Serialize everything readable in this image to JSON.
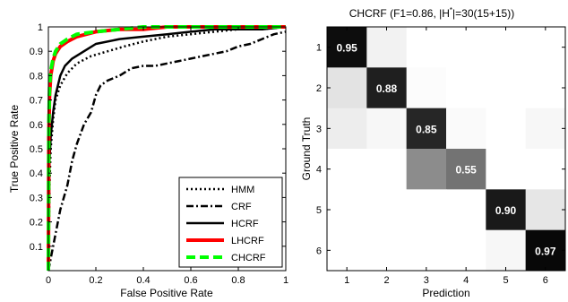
{
  "chart_data": [
    {
      "type": "line",
      "xlabel": "False Positive Rate",
      "ylabel": "True Positive Rate",
      "xlim": [
        0,
        1
      ],
      "ylim": [
        0,
        1
      ],
      "xticks": [
        "0",
        "0.2",
        "0.4",
        "0.6",
        "0.8",
        "1"
      ],
      "yticks": [
        "0.1",
        "0.2",
        "0.3",
        "0.4",
        "0.5",
        "0.6",
        "0.7",
        "0.8",
        "0.9",
        "1"
      ],
      "grid": false,
      "legend_position": "bottom-right",
      "series": [
        {
          "name": "HMM",
          "color": "#000000",
          "style": "dotted",
          "x": [
            0,
            0.005,
            0.01,
            0.02,
            0.03,
            0.05,
            0.08,
            0.12,
            0.18,
            0.25,
            0.32,
            0.4,
            0.5,
            0.6,
            0.7,
            0.8,
            0.9,
            1.0
          ],
          "y": [
            0,
            0.35,
            0.5,
            0.62,
            0.7,
            0.76,
            0.81,
            0.85,
            0.88,
            0.9,
            0.92,
            0.94,
            0.96,
            0.97,
            0.98,
            0.99,
            0.99,
            1.0
          ]
        },
        {
          "name": "CRF",
          "color": "#000000",
          "style": "dashdot",
          "x": [
            0,
            0.02,
            0.05,
            0.08,
            0.1,
            0.12,
            0.15,
            0.18,
            0.2,
            0.22,
            0.25,
            0.3,
            0.35,
            0.4,
            0.45,
            0.5,
            0.55,
            0.6,
            0.65,
            0.7,
            0.75,
            0.8,
            0.85,
            0.9,
            0.95,
            1.0
          ],
          "y": [
            0,
            0.1,
            0.25,
            0.35,
            0.45,
            0.52,
            0.6,
            0.65,
            0.72,
            0.76,
            0.78,
            0.8,
            0.83,
            0.84,
            0.84,
            0.85,
            0.86,
            0.87,
            0.88,
            0.89,
            0.9,
            0.92,
            0.93,
            0.95,
            0.97,
            0.98
          ]
        },
        {
          "name": "HCRF",
          "color": "#000000",
          "style": "solid",
          "x": [
            0,
            0.005,
            0.01,
            0.02,
            0.03,
            0.05,
            0.07,
            0.1,
            0.15,
            0.2,
            0.3,
            0.4,
            0.5,
            0.6,
            0.7,
            0.8,
            0.9,
            1.0
          ],
          "y": [
            0,
            0.45,
            0.55,
            0.65,
            0.72,
            0.8,
            0.84,
            0.87,
            0.9,
            0.93,
            0.95,
            0.96,
            0.97,
            0.98,
            0.99,
            0.99,
            0.99,
            1.0
          ]
        },
        {
          "name": "LHCRF",
          "color": "#ff0000",
          "style": "solid",
          "x": [
            0,
            0.002,
            0.005,
            0.01,
            0.02,
            0.03,
            0.05,
            0.08,
            0.12,
            0.2,
            0.3,
            0.4,
            0.5,
            0.6,
            0.8,
            1.0
          ],
          "y": [
            0,
            0.55,
            0.72,
            0.8,
            0.86,
            0.89,
            0.92,
            0.94,
            0.96,
            0.98,
            0.99,
            0.99,
            1.0,
            1.0,
            1.0,
            1.0
          ]
        },
        {
          "name": "CHCRF",
          "color": "#00ff00",
          "style": "dashed",
          "x": [
            0,
            0.002,
            0.005,
            0.01,
            0.02,
            0.03,
            0.05,
            0.08,
            0.12,
            0.2,
            0.3,
            0.4,
            0.5,
            0.6,
            0.8,
            1.0
          ],
          "y": [
            0,
            0.6,
            0.75,
            0.82,
            0.87,
            0.9,
            0.93,
            0.95,
            0.97,
            0.98,
            0.99,
            1.0,
            1.0,
            1.0,
            1.0,
            1.0
          ]
        }
      ]
    },
    {
      "type": "heatmap",
      "title": "CHCRF (F1=0.86, |H*|=30(15+15))",
      "title_parts": {
        "before": "CHCRF (F1=0.86, |H",
        "sup": "*",
        "after": "|=30(15+15))"
      },
      "xlabel": "Prediction",
      "ylabel": "Ground Truth",
      "categories": [
        "1",
        "2",
        "3",
        "4",
        "5",
        "6"
      ],
      "matrix": [
        [
          0.95,
          0.05,
          0.0,
          0.0,
          0.0,
          0.0
        ],
        [
          0.11,
          0.88,
          0.01,
          0.0,
          0.0,
          0.0
        ],
        [
          0.07,
          0.03,
          0.85,
          0.02,
          0.0,
          0.03
        ],
        [
          0.0,
          0.0,
          0.45,
          0.55,
          0.0,
          0.0
        ],
        [
          0.0,
          0.0,
          0.0,
          0.0,
          0.9,
          0.1
        ],
        [
          0.0,
          0.0,
          0.0,
          0.0,
          0.03,
          0.97
        ]
      ],
      "diagonal_labels": [
        "0.95",
        "0.88",
        "0.85",
        "0.55",
        "0.90",
        "0.97"
      ],
      "colormap": "gray-reversed"
    }
  ]
}
